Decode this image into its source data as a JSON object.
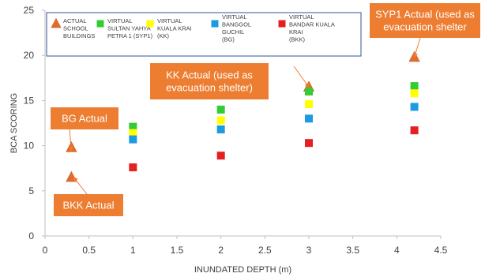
{
  "chart_data": {
    "type": "scatter",
    "title": "",
    "xlabel": "INUNDATED DEPTH (m)",
    "ylabel": "BCA SCORING",
    "xlim": [
      0,
      4.5
    ],
    "ylim": [
      0,
      25
    ],
    "x_ticks": [
      "0",
      "0.5",
      "1",
      "1.5",
      "2",
      "2.5",
      "3",
      "3.5",
      "4",
      "4.5"
    ],
    "y_ticks": [
      "0",
      "5",
      "10",
      "15",
      "20",
      "25"
    ],
    "grid": "none",
    "legend_position": "top",
    "series": [
      {
        "name_lines": [
          "ACTUAL",
          "SCHOOL",
          "BUILDINGS"
        ],
        "marker": "triangle",
        "color": "#e36c2c",
        "points": [
          {
            "x": 0.3,
            "y": 9.8
          },
          {
            "x": 0.3,
            "y": 6.5
          },
          {
            "x": 3.0,
            "y": 16.5
          },
          {
            "x": 4.2,
            "y": 19.8
          }
        ]
      },
      {
        "name_lines": [
          "VIRTUAL",
          "SULTAN YAHYA",
          "PETRA 1 (SYP1)"
        ],
        "marker": "square",
        "color": "#33cc33",
        "points": [
          {
            "x": 1.0,
            "y": 12.1
          },
          {
            "x": 2.0,
            "y": 14.0
          },
          {
            "x": 3.0,
            "y": 16.0
          },
          {
            "x": 4.2,
            "y": 16.6
          }
        ]
      },
      {
        "name_lines": [
          "VIRTUAL",
          "KUALA KRAI",
          "(KK)"
        ],
        "marker": "square",
        "color": "#ffff00",
        "points": [
          {
            "x": 1.0,
            "y": 11.4
          },
          {
            "x": 2.0,
            "y": 12.8
          },
          {
            "x": 3.0,
            "y": 14.6
          },
          {
            "x": 4.2,
            "y": 15.8
          }
        ]
      },
      {
        "name_lines": [
          "VIRTUAL",
          "BANGGOL",
          "GUCHIL",
          "(BG)"
        ],
        "marker": "square",
        "color": "#1b9be0",
        "points": [
          {
            "x": 1.0,
            "y": 10.7
          },
          {
            "x": 2.0,
            "y": 11.8
          },
          {
            "x": 3.0,
            "y": 13.0
          },
          {
            "x": 4.2,
            "y": 14.3
          }
        ]
      },
      {
        "name_lines": [
          "VIRTUAL",
          "BANDAR KUALA",
          "KRAI",
          "(BKK)"
        ],
        "marker": "square",
        "color": "#e52020",
        "points": [
          {
            "x": 1.0,
            "y": 7.6
          },
          {
            "x": 2.0,
            "y": 8.9
          },
          {
            "x": 3.0,
            "y": 10.3
          },
          {
            "x": 4.2,
            "y": 11.7
          }
        ]
      }
    ],
    "annotations": [
      {
        "lines": [
          "BG Actual"
        ],
        "target": {
          "x": 0.3,
          "y": 9.8
        }
      },
      {
        "lines": [
          "BKK Actual"
        ],
        "target": {
          "x": 0.3,
          "y": 6.5
        }
      },
      {
        "lines": [
          "KK Actual (used as",
          "evacuation shelter)"
        ],
        "target": {
          "x": 3.0,
          "y": 16.5
        }
      },
      {
        "lines": [
          "SYP1 Actual (used as",
          "evacuation shelter"
        ],
        "target": {
          "x": 4.2,
          "y": 19.8
        }
      }
    ],
    "callout_color": "#ed7d31",
    "axis_color": "#bfbfbf",
    "legend_border_color": "#2f5597"
  }
}
